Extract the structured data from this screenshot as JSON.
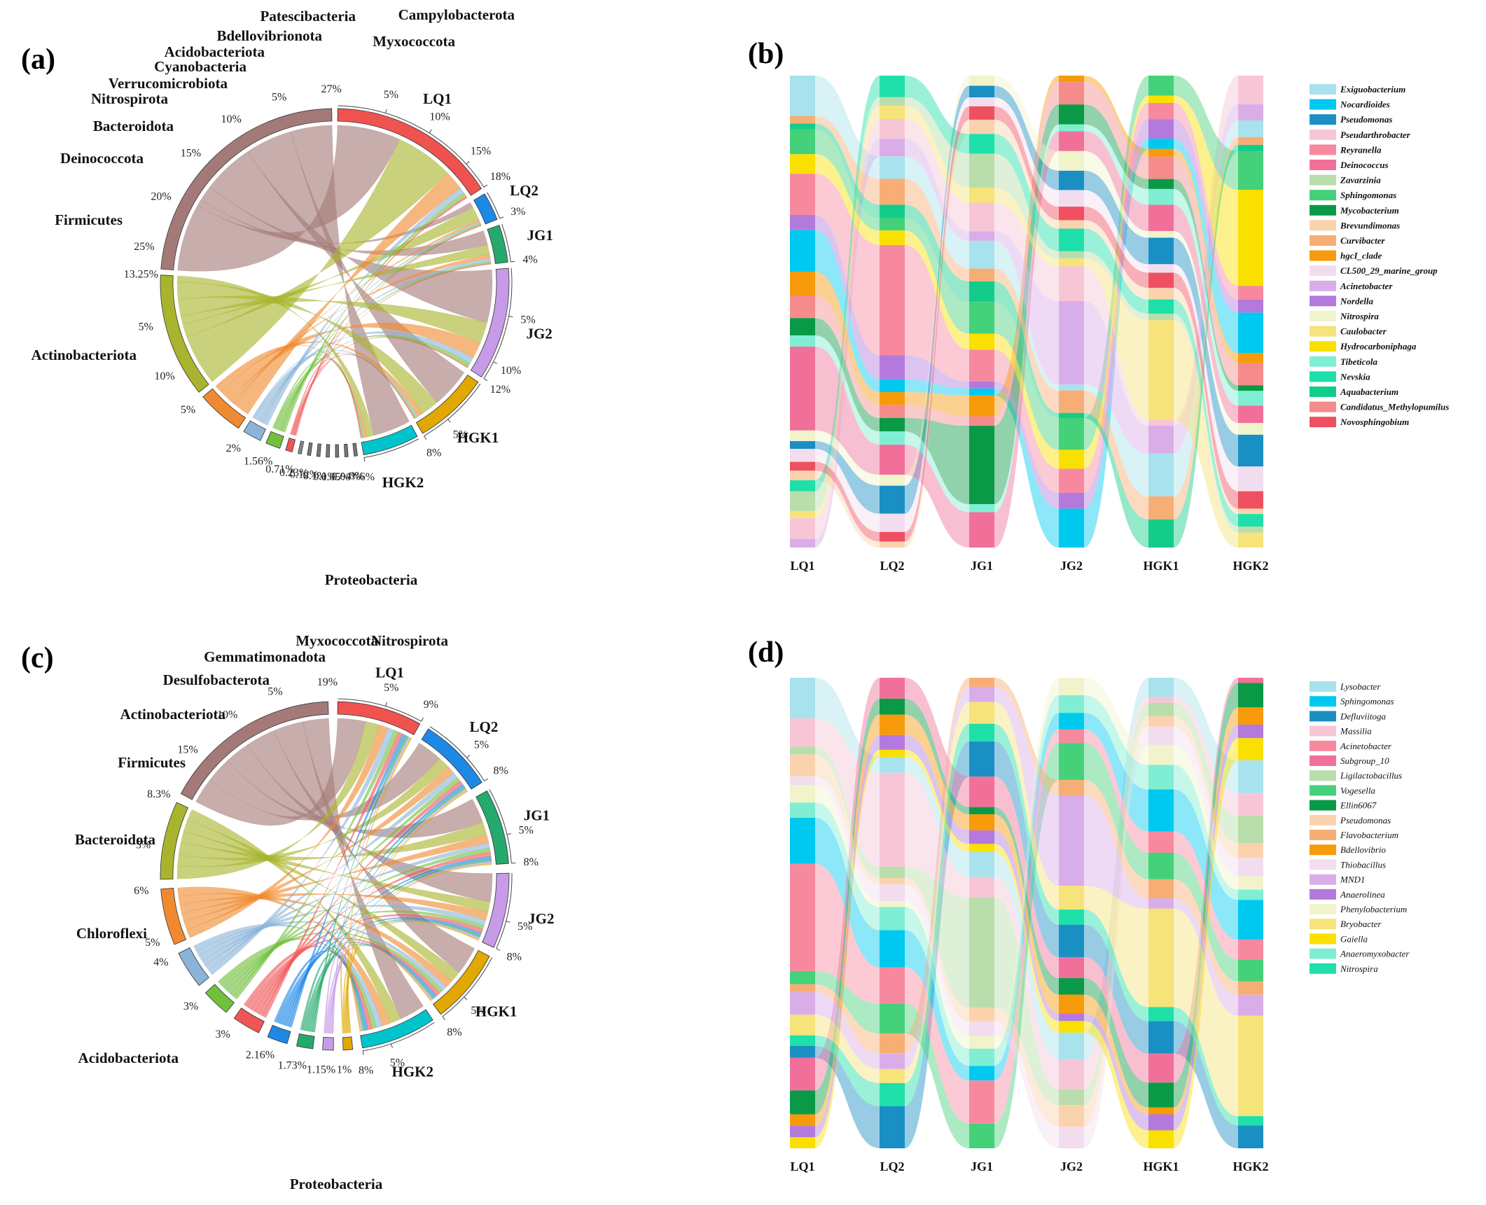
{
  "figure": {
    "panel_letters": [
      "(a)",
      "(b)",
      "(c)",
      "(d)"
    ]
  },
  "chart_data": [
    {
      "type": "chord",
      "panel": "(a)",
      "samples": [
        "LQ1",
        "LQ2",
        "JG1",
        "JG2",
        "HGK1",
        "HGK2"
      ],
      "sample_totals_pct": [
        18,
        3,
        4,
        12,
        8,
        6
      ],
      "sample_colors": [
        "#ef5350",
        "#1e88e5",
        "#26a96c",
        "#c79be8",
        "#e0a800",
        "#00c4cc"
      ],
      "sample_tick_labels": [
        [
          "5%",
          "10%",
          "15%",
          "18%"
        ],
        [
          "3%"
        ],
        [
          "4%"
        ],
        [
          "5%",
          "10%",
          "12%"
        ],
        [
          "5%",
          "8%"
        ],
        [
          "6%"
        ]
      ],
      "taxa": [
        "Proteobacteria",
        "Actinobacteriota",
        "Firmicutes",
        "Deinococcota",
        "Bacteroidota",
        "Nitrospirota",
        "Verrucomicrobiota",
        "Cyanobacteria",
        "Acidobacteriota",
        "Bdellovibrionota",
        "Patescibacteria",
        "Myxococcota",
        "Campylobacterota"
      ],
      "taxa_totals_pct": [
        27,
        13.25,
        5,
        2,
        1.56,
        0.71,
        0.23,
        0.12,
        0.1,
        0.1,
        0.05,
        0.04,
        0
      ],
      "taxa_value_labels": [
        "27%",
        "13.25%",
        "5%",
        "2%",
        "1.56%",
        "0.71%",
        "0.23%",
        "0.12%",
        "0.1%",
        "0.1%",
        "0.05%",
        "0.04%",
        "0%"
      ],
      "taxa_tick_labels": [
        [
          "5%",
          "10%",
          "15%",
          "20%",
          "25%"
        ],
        [
          "5%",
          "10%"
        ],
        [],
        [],
        [],
        [],
        [],
        [],
        [],
        [],
        [],
        [],
        []
      ],
      "taxa_colors": [
        "#a47a78",
        "#a8b42d",
        "#f08a30",
        "#8ab4d8",
        "#71c03c",
        "#f05555",
        "#888888",
        "#777777",
        "#777777",
        "#777777",
        "#777777",
        "#777777",
        "#777777"
      ],
      "flows_pct": {
        "Proteobacteria": [
          6.5,
          0.6,
          1.5,
          5.0,
          4.5,
          4.0
        ],
        "Actinobacteriota": [
          6.0,
          1.5,
          1.0,
          2.0,
          2.0,
          0.75
        ],
        "Firmicutes": [
          2.0,
          0.2,
          0.4,
          1.5,
          0.6,
          0.3
        ],
        "Deinococcota": [
          0.6,
          0.2,
          0.3,
          0.6,
          0.2,
          0.1
        ],
        "Bacteroidota": [
          0.4,
          0.2,
          0.2,
          0.4,
          0.2,
          0.16
        ],
        "Nitrospirota": [
          0.2,
          0.1,
          0.1,
          0.1,
          0.1,
          0.11
        ]
      }
    },
    {
      "type": "alluvial",
      "panel": "(b)",
      "samples": [
        "LQ1",
        "LQ2",
        "JG1",
        "JG2",
        "HGK1",
        "HGK2"
      ],
      "genera": [
        "Exiguobacterium",
        "Nocardioides",
        "Pseudomonas",
        "Pseudarthrobacter",
        "Reyranella",
        "Deinococcus",
        "Zavarzinia",
        "Sphingomonas",
        "Mycobacterium",
        "Brevundimonas",
        "Curvibacter",
        "hgcI_clade",
        "CL500_29_marine_group",
        "Acinetobacter",
        "Nordella",
        "Nitrospira",
        "Caulobacter",
        "Hydrocarboniphaga",
        "Tibeticola",
        "Nevskia",
        "Aquabacterium",
        "Candidatus_Methylopumilus",
        "Novosphingobium"
      ],
      "colors": [
        "#a8e2ec",
        "#00c9ef",
        "#1a8fc4",
        "#f7c6d6",
        "#f7899f",
        "#f0709a",
        "#b9ddab",
        "#45d07a",
        "#0a9a47",
        "#fbd2ae",
        "#f7ae74",
        "#f79a0b",
        "#f2ddef",
        "#d9aee8",
        "#b479dc",
        "#f1f3cb",
        "#f6e37a",
        "#f9e001",
        "#80eed2",
        "#1ee0a8",
        "#14cc8a",
        "#f58b8b",
        "#ef5061"
      ]
    },
    {
      "type": "chord",
      "panel": "(c)",
      "samples": [
        "LQ1",
        "LQ2",
        "JG1",
        "JG2",
        "HGK1",
        "HGK2"
      ],
      "sample_totals_pct": [
        9,
        8,
        8,
        8,
        8,
        8
      ],
      "sample_colors": [
        "#ef5350",
        "#1e88e5",
        "#26a96c",
        "#c79be8",
        "#e0a800",
        "#00c4cc"
      ],
      "sample_tick_labels": [
        [
          "5%",
          "9%"
        ],
        [
          "5%",
          "8%"
        ],
        [
          "5%",
          "8%"
        ],
        [
          "5%",
          "8%"
        ],
        [
          "5%",
          "8%"
        ],
        [
          "5%",
          "8%"
        ]
      ],
      "taxa": [
        "Proteobacteria",
        "Acidobacteriota",
        "Chloroflexi",
        "Bacteroidota",
        "Firmicutes",
        "Actinobacteriota",
        "Desulfobacterota",
        "Gemmatimonadota",
        "Myxococcota",
        "Nitrospirota"
      ],
      "taxa_totals_pct": [
        19,
        8.3,
        6,
        4,
        3,
        3,
        2.16,
        1.73,
        1.15,
        1
      ],
      "taxa_value_labels": [
        "19%",
        "8.3%",
        "6%",
        "4%",
        "3%",
        "3%",
        "2.16%",
        "1.73%",
        "1.15%",
        "1%"
      ],
      "taxa_tick_labels": [
        [
          "5%",
          "10%",
          "15%"
        ],
        [
          "5%"
        ],
        [
          "5%"
        ],
        [],
        [],
        [],
        [],
        [],
        [],
        []
      ],
      "taxa_colors": [
        "#a47a78",
        "#a8b42d",
        "#f08a30",
        "#8ab4d8",
        "#71c03c",
        "#f05555",
        "#1e88e5",
        "#26a96c",
        "#c79be8",
        "#e0a800"
      ],
      "flows_pct": {
        "Proteobacteria": [
          3.0,
          3.0,
          3.0,
          3.5,
          3.5,
          3.0
        ],
        "Acidobacteriota": [
          1.5,
          1.3,
          1.5,
          1.3,
          1.4,
          1.3
        ],
        "Chloroflexi": [
          1.0,
          1.0,
          1.0,
          1.0,
          1.0,
          1.0
        ],
        "Bacteroidota": [
          0.7,
          0.7,
          0.6,
          0.7,
          0.6,
          0.7
        ],
        "Firmicutes": [
          0.5,
          0.5,
          0.5,
          0.5,
          0.5,
          0.5
        ],
        "Actinobacteriota": [
          0.5,
          0.5,
          0.5,
          0.5,
          0.5,
          0.5
        ],
        "Desulfobacterota": [
          0.4,
          0.36,
          0.35,
          0.35,
          0.35,
          0.35
        ],
        "Gemmatimonadota": [
          0.3,
          0.3,
          0.28,
          0.28,
          0.28,
          0.29
        ],
        "Myxococcota": [
          0.2,
          0.2,
          0.19,
          0.19,
          0.19,
          0.18
        ],
        "Nitrospirota": [
          0.17,
          0.17,
          0.16,
          0.17,
          0.16,
          0.17
        ]
      }
    },
    {
      "type": "alluvial",
      "panel": "(d)",
      "samples": [
        "LQ1",
        "LQ2",
        "JG1",
        "JG2",
        "HGK1",
        "HGK2"
      ],
      "genera": [
        "Lysobacter",
        "Sphingomonas",
        "Defluviitoga",
        "Massilia",
        "Acinetobacter",
        "Subgroup_10",
        "Ligilactobacillus",
        "Vogesella",
        "Ellin6067",
        "Pseudomonas",
        "Flavobacterium",
        "Bdellovibrio",
        "Thiobacillus",
        "MND1",
        "Anaerolinea",
        "Phenylobacterium",
        "Bryobacter",
        "Gaiella",
        "Anaeromyxobacter",
        "Nitrospira"
      ],
      "colors": [
        "#a8e2ec",
        "#00c9ef",
        "#1a8fc4",
        "#f7c6d6",
        "#f7899f",
        "#f0709a",
        "#b9ddab",
        "#45d07a",
        "#0a9a47",
        "#fbd2ae",
        "#f7ae74",
        "#f79a0b",
        "#f2ddef",
        "#d9aee8",
        "#b479dc",
        "#f1f3cb",
        "#f6e37a",
        "#f9e001",
        "#80eed2",
        "#1ee0a8"
      ]
    }
  ]
}
